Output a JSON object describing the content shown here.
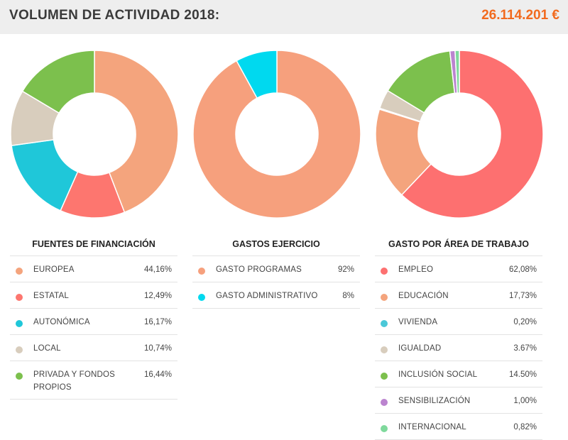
{
  "header": {
    "title": "VOLUMEN DE ACTIVIDAD 2018:",
    "total": "26.114.201 €",
    "total_color": "#f26a1e"
  },
  "chart_data": [
    {
      "type": "pie",
      "title": "FUENTES DE FINANCIACIÓN",
      "slices": [
        {
          "label": "EUROPEA",
          "value": 44.16,
          "value_text": "44,16%",
          "color": "#f4a47d"
        },
        {
          "label": "ESTATAL",
          "value": 12.49,
          "value_text": "12,49%",
          "color": "#fd766f"
        },
        {
          "label": "AUTONÓMICA",
          "value": 16.17,
          "value_text": "16,17%",
          "color": "#1fc7d9"
        },
        {
          "label": "LOCAL",
          "value": 10.74,
          "value_text": "10,74%",
          "color": "#d8cdbd"
        },
        {
          "label": "PRIVADA Y FONDOS PROPIOS",
          "value": 16.44,
          "value_text": "16,44%",
          "color": "#7cc04d"
        }
      ]
    },
    {
      "type": "pie",
      "title": "GASTOS EJERCICIO",
      "slices": [
        {
          "label": "GASTO PROGRAMAS",
          "value": 92,
          "value_text": "92%",
          "color": "#f6a07d"
        },
        {
          "label": "GASTO ADMINISTRATIVO",
          "value": 8,
          "value_text": "8%",
          "color": "#00d9ef"
        }
      ]
    },
    {
      "type": "pie",
      "title": "GASTO POR ÁREA DE TRABAJO",
      "slices": [
        {
          "label": "EMPLEO",
          "value": 62.08,
          "value_text": "62,08%",
          "color": "#fd7070"
        },
        {
          "label": "EDUCACIÓN",
          "value": 17.73,
          "value_text": "17,73%",
          "color": "#f4a47d"
        },
        {
          "label": "VIVIENDA",
          "value": 0.2,
          "value_text": "0,20%",
          "color": "#4bc8d8"
        },
        {
          "label": "IGUALDAD",
          "value": 3.67,
          "value_text": "3.67%",
          "color": "#d8cdbd"
        },
        {
          "label": "INCLUSIÓN SOCIAL",
          "value": 14.5,
          "value_text": "14.50%",
          "color": "#7cc04d"
        },
        {
          "label": "SENSIBILIZACIÓN",
          "value": 1.0,
          "value_text": "1,00%",
          "color": "#bb84cf"
        },
        {
          "label": "INTERNACIONAL",
          "value": 0.82,
          "value_text": "0,82%",
          "color": "#7fd99c"
        }
      ]
    }
  ]
}
